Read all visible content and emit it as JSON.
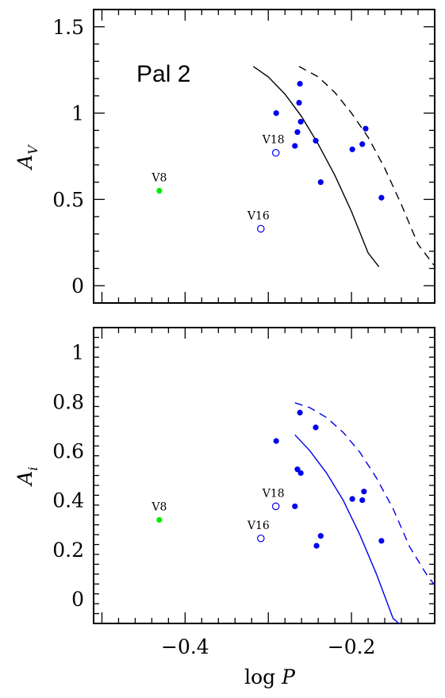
{
  "chart_data": [
    {
      "type": "scatter",
      "title": "",
      "annotation_title": "Pal 2",
      "xlabel": "",
      "ylabel": "A",
      "ylabel_sub": "V",
      "xlim": [
        -0.51,
        -0.1
      ],
      "ylim": [
        -0.1,
        1.6
      ],
      "y_ticks": [
        0,
        0.5,
        1,
        1.5
      ],
      "y_tick_labels": [
        "0",
        "0.5",
        "1",
        "1.5"
      ],
      "series": [
        {
          "marker": "filled",
          "color": "#0000ee",
          "points": [
            {
              "x": -0.2905,
              "y": 1.0
            },
            {
              "x": -0.262,
              "y": 1.17
            },
            {
              "x": -0.263,
              "y": 1.06
            },
            {
              "x": -0.261,
              "y": 0.95
            },
            {
              "x": -0.265,
              "y": 0.89
            },
            {
              "x": -0.268,
              "y": 0.81
            },
            {
              "x": -0.243,
              "y": 0.84
            },
            {
              "x": -0.237,
              "y": 0.6
            },
            {
              "x": -0.199,
              "y": 0.79
            },
            {
              "x": -0.187,
              "y": 0.82
            },
            {
              "x": -0.183,
              "y": 0.91
            },
            {
              "x": -0.164,
              "y": 0.51
            }
          ]
        },
        {
          "marker": "open",
          "color": "#0000ee",
          "points": [
            {
              "x": -0.291,
              "y": 0.77,
              "label": "V18"
            },
            {
              "x": -0.309,
              "y": 0.33,
              "label": "V16"
            }
          ]
        },
        {
          "marker": "filled",
          "color": "#00ee00",
          "points": [
            {
              "x": -0.431,
              "y": 0.55,
              "label": "V8"
            }
          ]
        }
      ],
      "curves": [
        {
          "style": "solid",
          "color": "#000000",
          "points": [
            [
              -0.318,
              1.27
            ],
            [
              -0.3,
              1.21
            ],
            [
              -0.28,
              1.11
            ],
            [
              -0.26,
              0.98
            ],
            [
              -0.24,
              0.82
            ],
            [
              -0.22,
              0.64
            ],
            [
              -0.2,
              0.43
            ],
            [
              -0.18,
              0.19
            ],
            [
              -0.167,
              0.11
            ]
          ]
        },
        {
          "style": "dashed",
          "color": "#000000",
          "points": [
            [
              -0.263,
              1.27
            ],
            [
              -0.24,
              1.21
            ],
            [
              -0.22,
              1.12
            ],
            [
              -0.2,
              1.0
            ],
            [
              -0.18,
              0.86
            ],
            [
              -0.16,
              0.68
            ],
            [
              -0.14,
              0.47
            ],
            [
              -0.12,
              0.24
            ],
            [
              -0.101,
              0.12
            ]
          ]
        }
      ]
    },
    {
      "type": "scatter",
      "title": "",
      "xlabel": "log P",
      "ylabel": "A",
      "ylabel_sub": "i",
      "xlim": [
        -0.51,
        -0.1
      ],
      "ylim": [
        -0.1,
        1.1
      ],
      "y_ticks": [
        0,
        0.2,
        0.4,
        0.6,
        0.8,
        1
      ],
      "y_tick_labels": [
        "0",
        "0.2",
        "0.4",
        "0.6",
        "0.8",
        "1"
      ],
      "x_ticks": [
        -0.4,
        -0.2
      ],
      "x_tick_labels": [
        "−0.4",
        "−0.2"
      ],
      "series": [
        {
          "marker": "filled",
          "color": "#0000ee",
          "points": [
            {
              "x": -0.2905,
              "y": 0.64
            },
            {
              "x": -0.262,
              "y": 0.755
            },
            {
              "x": -0.265,
              "y": 0.525
            },
            {
              "x": -0.261,
              "y": 0.51
            },
            {
              "x": -0.268,
              "y": 0.375
            },
            {
              "x": -0.243,
              "y": 0.695
            },
            {
              "x": -0.242,
              "y": 0.215
            },
            {
              "x": -0.237,
              "y": 0.255
            },
            {
              "x": -0.199,
              "y": 0.405
            },
            {
              "x": -0.187,
              "y": 0.4
            },
            {
              "x": -0.185,
              "y": 0.435
            },
            {
              "x": -0.164,
              "y": 0.235
            }
          ]
        },
        {
          "marker": "open",
          "color": "#0000ee",
          "points": [
            {
              "x": -0.291,
              "y": 0.375,
              "label": "V18"
            },
            {
              "x": -0.309,
              "y": 0.245,
              "label": "V16"
            }
          ]
        },
        {
          "marker": "filled",
          "color": "#00ee00",
          "points": [
            {
              "x": -0.431,
              "y": 0.32,
              "label": "V8"
            }
          ]
        }
      ],
      "curves": [
        {
          "style": "solid",
          "color": "#0000ee",
          "points": [
            [
              -0.268,
              0.665
            ],
            [
              -0.25,
              0.6
            ],
            [
              -0.23,
              0.51
            ],
            [
              -0.21,
              0.4
            ],
            [
              -0.19,
              0.26
            ],
            [
              -0.17,
              0.1
            ],
            [
              -0.15,
              -0.08
            ],
            [
              -0.143,
              -0.1
            ]
          ]
        },
        {
          "style": "dashed",
          "color": "#0000ee",
          "points": [
            [
              -0.268,
              0.795
            ],
            [
              -0.25,
              0.775
            ],
            [
              -0.23,
              0.735
            ],
            [
              -0.21,
              0.675
            ],
            [
              -0.19,
              0.595
            ],
            [
              -0.17,
              0.49
            ],
            [
              -0.15,
              0.365
            ],
            [
              -0.13,
              0.21
            ],
            [
              -0.11,
              0.1
            ],
            [
              -0.1,
              0.055
            ]
          ]
        }
      ]
    }
  ]
}
